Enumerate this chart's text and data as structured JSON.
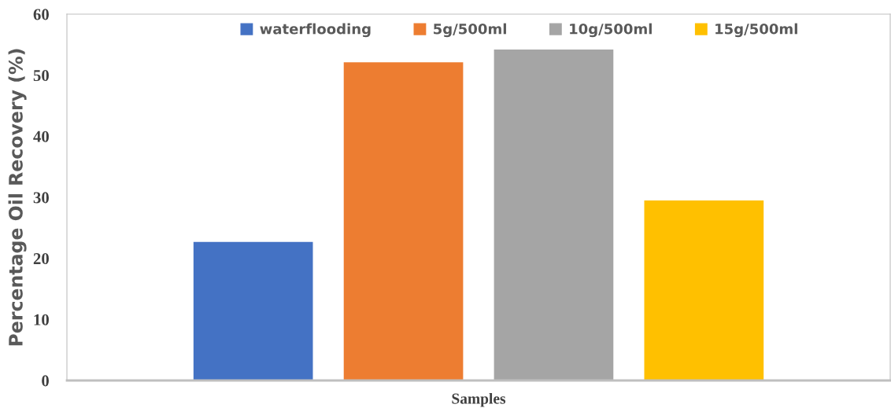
{
  "chart_data": {
    "type": "bar",
    "xlabel": "Samples",
    "ylabel": "Percentage Oil Recovery (%)",
    "categories": [
      null
    ],
    "series": [
      {
        "name": "waterflooding",
        "color": "#4472c4",
        "values": [
          22.7
        ]
      },
      {
        "name": "5g/500ml",
        "color": "#ed7d31",
        "values": [
          52.1
        ]
      },
      {
        "name": "10g/500ml",
        "color": "#a5a5a5",
        "values": [
          54.2
        ]
      },
      {
        "name": "15g/500ml",
        "color": "#ffc000",
        "values": [
          29.5
        ]
      }
    ],
    "ylim": [
      0,
      60
    ],
    "yticks": [
      0,
      10,
      20,
      30,
      40,
      50,
      60
    ],
    "grid": false,
    "legend": "top"
  }
}
